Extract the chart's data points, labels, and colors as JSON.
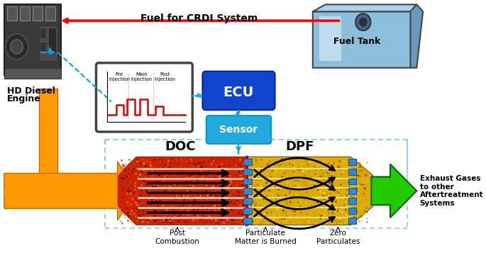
{
  "bg_color": "#ffffff",
  "fuel_label": "Fuel for CRDI System",
  "fuel_tank_label": "Fuel Tank",
  "engine_label_1": "HD Diesel",
  "engine_label_2": "Engine",
  "ecu_label": "ECU",
  "sensor_label": "Sensor",
  "exhaust_in_label": "Exhaust Gases",
  "exhaust_out_label": "Exhaust Gases\nto other\nAftertreatment\nSystems",
  "doc_label": "DOC",
  "dpf_label": "DPF",
  "post_comb_label": "Post\nCombustion",
  "particulate_label": "Particulate\nMatter is Burned",
  "zero_part_label": "Zero\nParticulates",
  "inj_pre": "Pre\nInjection",
  "inj_main": "Main\nInjection",
  "inj_post": "Post\nInjection",
  "ecu_color": "#1144cc",
  "sensor_color": "#22aadd",
  "cyan_arrow": "#00aadd",
  "orange_color": "#ff9900",
  "green_color": "#22cc00",
  "red_color": "#dd0000",
  "filter_body_color": "#cc4400",
  "doc_color": "#cc2200",
  "dpf_color": "#cc9900",
  "blue_cap_color": "#3388cc"
}
